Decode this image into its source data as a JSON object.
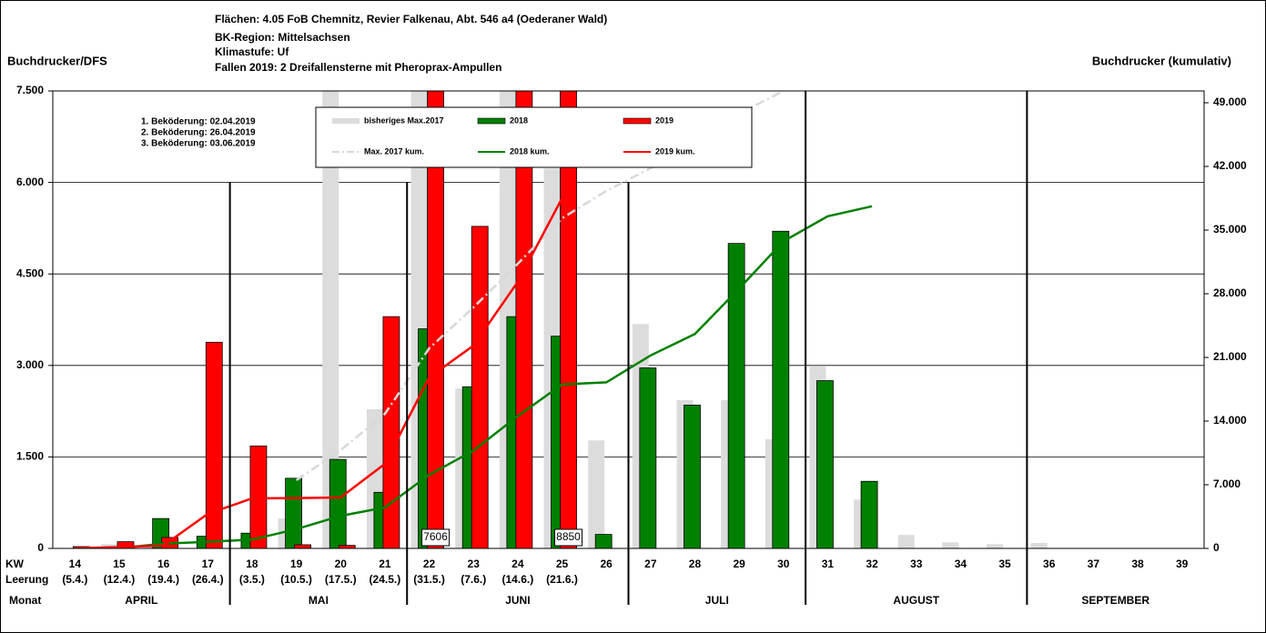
{
  "chart_data": {
    "type": "bar",
    "header": [
      "Flächen: 4.05 FoB Chemnitz, Revier Falkenau, Abt. 546 a4 (Oederaner Wald)",
      "BK-Region: Mittelsachsen",
      "Klimastufe: Uf",
      "Fallen 2019: 2 Dreifallensterne mit Pheroprax-Ampullen"
    ],
    "y_label": "Buchdrucker/DFS",
    "y2_label": "Buchdrucker (kumulativ)",
    "annotation": [
      "1. Beköderung: 02.04.2019",
      "2. Beköderung: 26.04.2019",
      "3. Beköderung: 03.06.2019"
    ],
    "row_labels": [
      "KW",
      "Leerung",
      "Monat"
    ],
    "categories": [
      "14",
      "15",
      "16",
      "17",
      "18",
      "19",
      "20",
      "21",
      "22",
      "23",
      "24",
      "25",
      "26",
      "27",
      "28",
      "29",
      "30",
      "31",
      "32",
      "33",
      "34",
      "35",
      "36",
      "37",
      "38",
      "39"
    ],
    "emptying_dates": [
      "(5.4.)",
      "(12.4.)",
      "(19.4.)",
      "(26.4.)",
      "(3.5.)",
      "(10.5.)",
      "(17.5.)",
      "(24.5.)",
      "(31.5.)",
      "(7.6.)",
      "(14.6.)",
      "(21.6.)",
      null,
      null,
      null,
      null,
      null,
      null,
      null,
      null,
      null,
      null,
      null,
      null,
      null,
      null
    ],
    "months": [
      "APRIL",
      "MAI",
      "JUNI",
      "JULI",
      "AUGUST",
      "SEPTEMBER"
    ],
    "ylim": [
      0,
      7500
    ],
    "yticks": [
      0,
      {
        "value": 1500,
        "label": "1.500"
      },
      {
        "value": 3000,
        "label": "3.000"
      },
      {
        "value": 4500,
        "label": "4.500"
      },
      {
        "value": 6000,
        "label": "6.000"
      },
      {
        "value": 7500,
        "label": "7.500"
      }
    ],
    "y2lim": [
      0,
      50300
    ],
    "y2ticks": [
      0,
      {
        "value": 7000,
        "label": "7.000"
      },
      {
        "value": 14000,
        "label": "14.000"
      },
      {
        "value": 21000,
        "label": "21.000"
      },
      {
        "value": 28000,
        "label": "28.000"
      },
      {
        "value": 35000,
        "label": "35.000"
      },
      {
        "value": 42000,
        "label": "42.000"
      },
      {
        "value": 49000,
        "label": "49.000"
      }
    ],
    "grid": true,
    "series": [
      {
        "name": "bisheriges Max.2017",
        "kind": "bar",
        "color": "#dcdcdc",
        "values": [
          0,
          70,
          30,
          0,
          0,
          490,
          8000,
          2280,
          9000,
          2620,
          8500,
          6230,
          1770,
          3680,
          2430,
          2430,
          1790,
          2980,
          800,
          220,
          100,
          70,
          90,
          0,
          0,
          0
        ]
      },
      {
        "name": "2018",
        "kind": "bar",
        "color": "#008000",
        "values": [
          0,
          30,
          490,
          200,
          250,
          1150,
          1460,
          920,
          3600,
          2650,
          3800,
          3480,
          230,
          2960,
          2350,
          5000,
          5200,
          2750,
          1100,
          null,
          null,
          null,
          null,
          null,
          null,
          null
        ]
      },
      {
        "name": "2019",
        "kind": "bar",
        "color": "#ff0000",
        "values": [
          30,
          110,
          180,
          3380,
          1680,
          60,
          50,
          3800,
          7606,
          5280,
          8100,
          8850,
          null,
          null,
          null,
          null,
          null,
          null,
          null,
          null,
          null,
          null,
          null,
          null,
          null,
          null
        ],
        "value_labels": [
          null,
          null,
          null,
          null,
          null,
          null,
          null,
          null,
          "7606",
          null,
          null,
          "8850",
          null,
          null,
          null,
          null,
          null,
          null,
          null,
          null,
          null,
          null,
          null,
          null,
          null,
          null
        ]
      },
      {
        "name": "Max. 2017 kum.",
        "kind": "line",
        "axis": "y2",
        "dash": "dash-dot",
        "color": "#d8d8d8",
        "values": [
          null,
          null,
          null,
          null,
          null,
          7500,
          10800,
          14800,
          22000,
          26500,
          31300,
          36300,
          39300,
          41800,
          44800,
          47800,
          50300,
          null,
          null,
          null,
          null,
          null,
          null,
          null,
          null,
          null
        ]
      },
      {
        "name": "2018 kum.",
        "kind": "line",
        "axis": "y2",
        "color": "#008000",
        "values": [
          0,
          30,
          520,
          720,
          970,
          2120,
          3580,
          4500,
          8100,
          10750,
          14550,
          18030,
          18260,
          21220,
          23570,
          28570,
          33770,
          36520,
          37620,
          null,
          null,
          null,
          null,
          null,
          null,
          null
        ]
      },
      {
        "name": "2019 kum.",
        "kind": "line",
        "axis": "y2",
        "color": "#ff0000",
        "values": [
          30,
          140,
          320,
          3800,
          5500,
          5540,
          5600,
          9300,
          18800,
          22300,
          29300,
          38500,
          null,
          null,
          null,
          null,
          null,
          null,
          null,
          null,
          null,
          null,
          null,
          null,
          null,
          null
        ]
      }
    ]
  }
}
